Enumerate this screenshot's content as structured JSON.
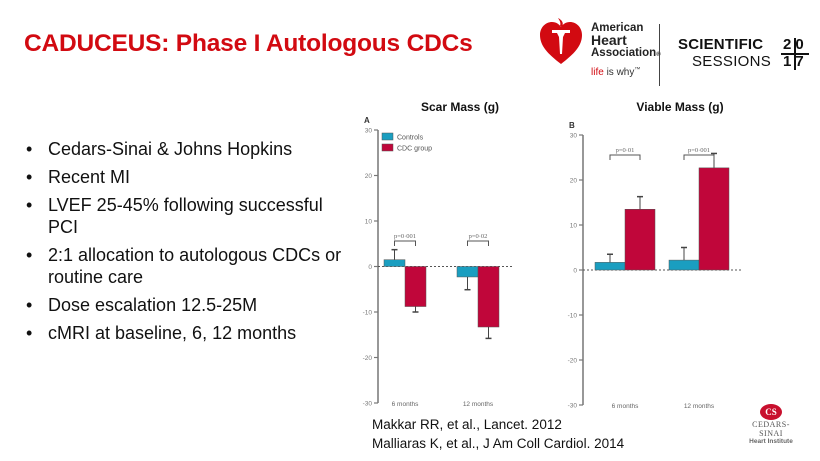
{
  "slide": {
    "title": "CADUCEUS: Phase I Autologous CDCs",
    "bullets": [
      "Cedars-Sinai & Johns Hopkins",
      "Recent MI",
      "LVEF 25-45% following successful PCI",
      "2:1 allocation to autologous CDCs or routine care",
      "Dose escalation 12.5-25M",
      "cMRI at baseline, 6, 12 months"
    ],
    "bullet_glyph": "•",
    "references": [
      "Makkar RR, et al., Lancet. 2012",
      "Malliaras K, et al., J Am Coll Cardiol. 2014"
    ]
  },
  "logos": {
    "aha": {
      "line1": "American",
      "line2": "Heart",
      "line3": "Association",
      "reg": "®",
      "tagline_red": "life",
      "tagline_rest": " is why",
      "tm": "™",
      "icon": "heart-torch-icon",
      "color": "#d20a11"
    },
    "sessions": {
      "line1": "SCIENTIFIC",
      "line2": "SESSIONS",
      "year_digits": [
        "2",
        "0",
        "1",
        "7"
      ]
    },
    "cedars": {
      "monogram": "CS",
      "name": "CEDARS-SINAI",
      "sub": "Heart Institute",
      "color": "#c8102e"
    }
  },
  "chart_data": [
    {
      "type": "bar",
      "panel": "A",
      "title": "Scar Mass (g)",
      "categories": [
        "6 months",
        "12 months"
      ],
      "series": [
        {
          "name": "Controls",
          "color": "#1a9ec0",
          "values": [
            1.5,
            -2.3
          ],
          "error": [
            2.2,
            2.8
          ]
        },
        {
          "name": "CDC group",
          "color": "#c0063a",
          "values": [
            -8.8,
            -13.3
          ],
          "error": [
            1.2,
            2.5
          ]
        }
      ],
      "p_values": [
        "p=0·001",
        "p=0·02"
      ],
      "ylim": [
        -30,
        30
      ],
      "yticks": [
        30,
        20,
        10,
        0,
        -10,
        -20,
        -30
      ],
      "ytick_labels": [
        "30",
        "20",
        "10",
        "0",
        "-10",
        "-20",
        "-30"
      ],
      "legend": {
        "position": "top-left",
        "entries": [
          "Controls",
          "CDC group"
        ]
      },
      "xlabel": "",
      "ylabel": "",
      "grid": false,
      "zero_line": "dotted"
    },
    {
      "type": "bar",
      "panel": "B",
      "title": "Viable Mass (g)",
      "categories": [
        "6 months",
        "12 months"
      ],
      "series": [
        {
          "name": "Controls",
          "color": "#1a9ec0",
          "values": [
            1.7,
            2.2
          ],
          "error": [
            1.8,
            2.8
          ]
        },
        {
          "name": "CDC group",
          "color": "#c0063a",
          "values": [
            13.5,
            22.7
          ],
          "error": [
            2.8,
            3.2
          ]
        }
      ],
      "p_values": [
        "p=0·01",
        "p=0·001"
      ],
      "ylim": [
        -30,
        30
      ],
      "yticks": [
        30,
        20,
        10,
        0,
        -10,
        -20,
        -30
      ],
      "ytick_labels": [
        "30",
        "20",
        "10",
        "0",
        "-10",
        "-20",
        "-30"
      ],
      "xlabel": "",
      "ylabel": "",
      "grid": false,
      "zero_line": "dotted"
    }
  ]
}
